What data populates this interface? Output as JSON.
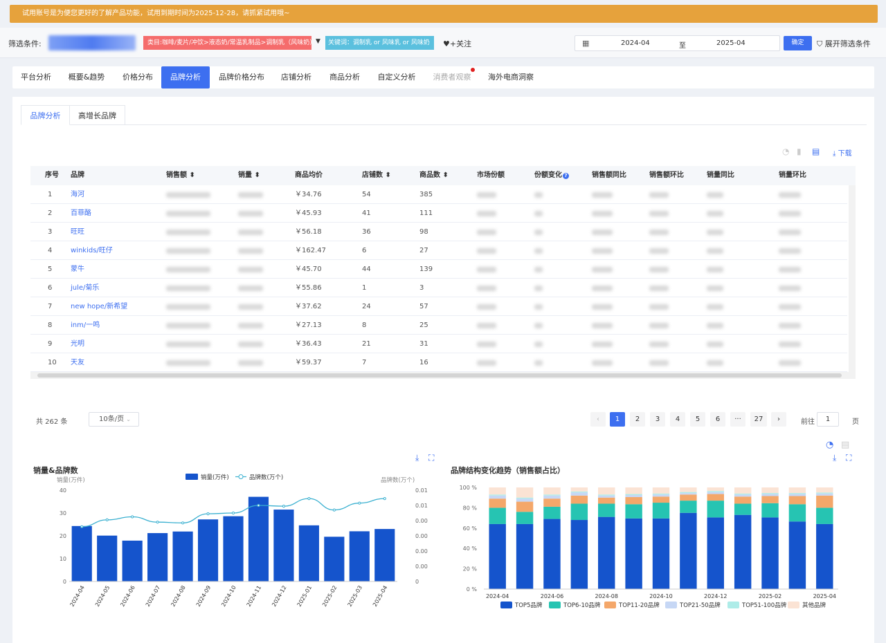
{
  "notice": "试用账号是为便您更好的了解产品功能，试用到期时间为2025-12-28，请抓紧试用哦~",
  "filter": {
    "label": "筛选条件:",
    "category_tag": "类目:咖啡/麦片/冲饮>液态奶/常温乳制品>调制乳（风味奶）",
    "keyword_tag": "关键词：调制乳 or 风味乳 or 风味奶",
    "follow": "♥+关注",
    "date_from": "2024-04",
    "date_to_label": "至",
    "date_to": "2025-04",
    "confirm": "确定",
    "expand": "展开筛选条件"
  },
  "nav": [
    {
      "label": "平台分析"
    },
    {
      "label": "概要&趋势"
    },
    {
      "label": "价格分布"
    },
    {
      "label": "品牌分析"
    },
    {
      "label": "品牌价格分布"
    },
    {
      "label": "店铺分析"
    },
    {
      "label": "商品分析"
    },
    {
      "label": "自定义分析"
    },
    {
      "label": "消费者观察"
    },
    {
      "label": "海外电商洞察"
    }
  ],
  "subtabs": [
    "品牌分析",
    "高增长品牌"
  ],
  "download": "下载",
  "table": {
    "columns": [
      "序号",
      "品牌",
      "销售额",
      "销量",
      "商品均价",
      "店铺数",
      "商品数",
      "市场份额",
      "份额变化",
      "销售额同比",
      "销售额环比",
      "销量同比",
      "销量环比"
    ],
    "rows": [
      {
        "idx": "1",
        "brand": "海河",
        "price": "￥34.76",
        "shops": "54",
        "items": "385"
      },
      {
        "idx": "2",
        "brand": "百菲酪",
        "price": "￥45.93",
        "shops": "41",
        "items": "111"
      },
      {
        "idx": "3",
        "brand": "旺旺",
        "price": "￥56.18",
        "shops": "36",
        "items": "98"
      },
      {
        "idx": "4",
        "brand": "winkids/旺仔",
        "price": "￥162.47",
        "shops": "6",
        "items": "27"
      },
      {
        "idx": "5",
        "brand": "蒙牛",
        "price": "￥45.70",
        "shops": "44",
        "items": "139"
      },
      {
        "idx": "6",
        "brand": "jule/菊乐",
        "price": "￥55.86",
        "shops": "1",
        "items": "3"
      },
      {
        "idx": "7",
        "brand": "new hope/新希望",
        "price": "￥37.62",
        "shops": "24",
        "items": "57"
      },
      {
        "idx": "8",
        "brand": "inm/一鸣",
        "price": "￥27.13",
        "shops": "8",
        "items": "25"
      },
      {
        "idx": "9",
        "brand": "光明",
        "price": "￥36.43",
        "shops": "21",
        "items": "31"
      },
      {
        "idx": "10",
        "brand": "天友",
        "price": "￥59.37",
        "shops": "7",
        "items": "16"
      }
    ]
  },
  "pagination": {
    "total": "共 262 条",
    "page_size": "10条/页",
    "pages": [
      "1",
      "2",
      "3",
      "4",
      "5",
      "6",
      "···",
      "27"
    ],
    "goto_label": "前往",
    "goto_value": "1",
    "page_unit": "页"
  },
  "chart_data": [
    {
      "type": "bar",
      "title": "销量&品牌数",
      "categories": [
        "2024-04",
        "2024-05",
        "2024-06",
        "2024-07",
        "2024-08",
        "2024-09",
        "2024-10",
        "2024-11",
        "2024-12",
        "2025-01",
        "2025-02",
        "2025-03",
        "2025-04"
      ],
      "series": [
        {
          "name": "销量(万件)",
          "type": "bar",
          "axis": "left",
          "values": [
            24.3,
            20.1,
            17.9,
            21.2,
            21.9,
            27.2,
            28.6,
            37.1,
            31.5,
            24.6,
            19.6,
            22.0,
            23.0
          ]
        },
        {
          "name": "品牌数(万个)",
          "type": "line",
          "axis": "right",
          "values": [
            0.0072,
            0.0081,
            0.0085,
            0.0078,
            0.0077,
            0.0089,
            0.009,
            0.01,
            0.0099,
            0.0109,
            0.0094,
            0.0103,
            0.0109
          ]
        }
      ],
      "ylabel_left": "销量(万件)",
      "ylabel_right": "品牌数(万个)",
      "ylim_left": [
        0,
        40
      ],
      "yticks_left": [
        "0",
        "10",
        "20",
        "30",
        "40"
      ],
      "ylim_right": [
        0,
        0.012
      ],
      "yticks_right": [
        "0",
        "0.002",
        "0.004",
        "0.006",
        "0.008",
        "0.01",
        "0.012"
      ],
      "legend": "top-center",
      "colors": [
        "#1554cc",
        "#3ab0d0"
      ]
    },
    {
      "type": "bar",
      "stacked": true,
      "title": "品牌结构变化趋势（销售额占比）",
      "categories": [
        "2024-04",
        "2024-05",
        "2024-06",
        "2024-07",
        "2024-08",
        "2024-09",
        "2024-10",
        "2024-11",
        "2024-12",
        "2025-01",
        "2025-02",
        "2025-03",
        "2025-04"
      ],
      "xtick_labels": [
        "2024-04",
        "2024-06",
        "2024-08",
        "2024-10",
        "2024-12",
        "2025-02",
        "2025-04"
      ],
      "series": [
        {
          "name": "TOP5品牌",
          "values": [
            64,
            64,
            69,
            68,
            71,
            69.5,
            69.5,
            75,
            70.5,
            73,
            70.5,
            66.5,
            64
          ]
        },
        {
          "name": "TOP6-10品牌",
          "values": [
            16,
            12,
            12,
            16,
            13,
            14,
            15.5,
            12,
            16.5,
            11,
            14,
            17,
            16
          ]
        },
        {
          "name": "TOP11-20品牌",
          "values": [
            9,
            10,
            8,
            8,
            6,
            7,
            6,
            6,
            6.5,
            7,
            7,
            8,
            12
          ]
        },
        {
          "name": "TOP21-50品牌",
          "values": [
            3,
            3,
            3,
            3,
            2,
            2,
            2,
            1.5,
            2,
            2,
            2,
            2,
            2
          ]
        },
        {
          "name": "TOP51-100品牌",
          "values": [
            1,
            1,
            1,
            1,
            1,
            1,
            1,
            1,
            1,
            1,
            1,
            1,
            1
          ]
        },
        {
          "name": "其他品牌",
          "values": [
            7,
            10,
            7,
            4,
            7,
            6.5,
            6,
            4.5,
            3.5,
            6,
            5.5,
            5.5,
            5
          ]
        }
      ],
      "ylim": [
        0,
        100
      ],
      "yticks": [
        "0 %",
        "20 %",
        "40 %",
        "60 %",
        "80 %",
        "100 %"
      ],
      "legend": "bottom-center",
      "colors": [
        "#1554cc",
        "#26c4b2",
        "#f4a76a",
        "#c6d7f5",
        "#aeece8",
        "#fbe3d4"
      ]
    }
  ]
}
